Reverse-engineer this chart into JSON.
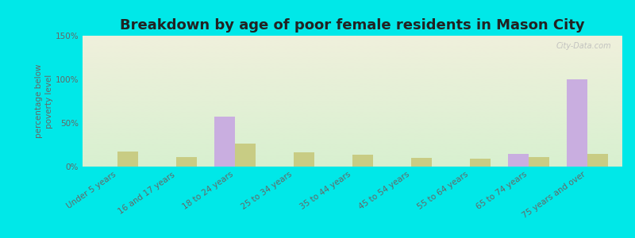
{
  "title": "Breakdown by age of poor female residents in Mason City",
  "ylabel": "percentage below\npoverty level",
  "categories": [
    "Under 5 years",
    "16 and 17 years",
    "18 to 24 years",
    "25 to 34 years",
    "35 to 44 years",
    "45 to 54 years",
    "55 to 64 years",
    "65 to 74 years",
    "75 years and over"
  ],
  "mason_city": [
    0,
    0,
    57,
    0,
    0,
    0,
    0,
    15,
    100
  ],
  "nebraska": [
    17,
    11,
    26,
    16,
    14,
    10,
    9,
    11,
    15
  ],
  "mason_city_color": "#c9aee0",
  "nebraska_color": "#c8cc84",
  "background_top": "#f0f0dc",
  "background_bottom": "#d8f0d0",
  "outer_bg": "#00e8e8",
  "ylim": [
    0,
    150
  ],
  "yticks": [
    0,
    50,
    100,
    150
  ],
  "ytick_labels": [
    "0%",
    "50%",
    "100%",
    "150%"
  ],
  "bar_width": 0.35,
  "title_fontsize": 13,
  "tick_fontsize": 7.5,
  "ylabel_fontsize": 7.5,
  "watermark": "City-Data.com",
  "legend_fontsize": 9
}
